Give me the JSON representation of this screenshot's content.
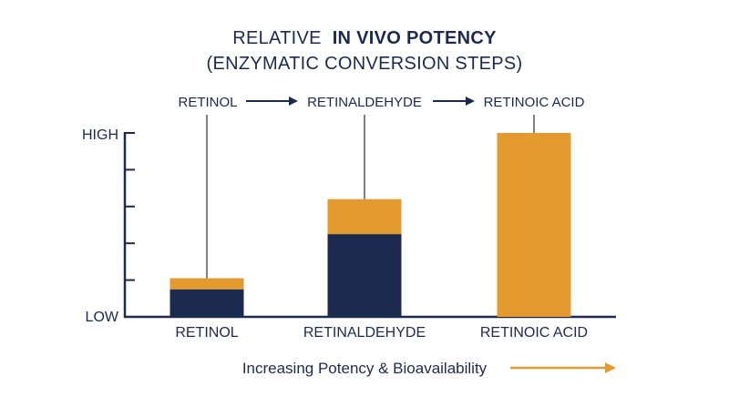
{
  "title": {
    "line1_regular": "RELATIVE",
    "line1_bold": "IN VIVO POTENCY",
    "line2": "(ENZYMATIC CONVERSION STEPS)"
  },
  "pathway": [
    "RETINOL",
    "RETINALDEHYDE",
    "RETINOIC ACID"
  ],
  "colors": {
    "navy": "#1c2a50",
    "gold": "#e39b30"
  },
  "chart_data": {
    "type": "bar",
    "stacked": true,
    "categories": [
      "RETINOL",
      "RETINALDEHYDE",
      "RETINOIC ACID"
    ],
    "series": [
      {
        "color": "#1c2a50",
        "values": [
          15,
          45,
          0
        ]
      },
      {
        "color": "#e39b30",
        "values": [
          6,
          19,
          100
        ]
      }
    ],
    "ylim": [
      0,
      100
    ],
    "y_tick_count": 6,
    "y_low_label": "LOW",
    "y_high_label": "HIGH",
    "grid": false
  },
  "footer": {
    "text": "Increasing Potency & Bioavailability"
  }
}
